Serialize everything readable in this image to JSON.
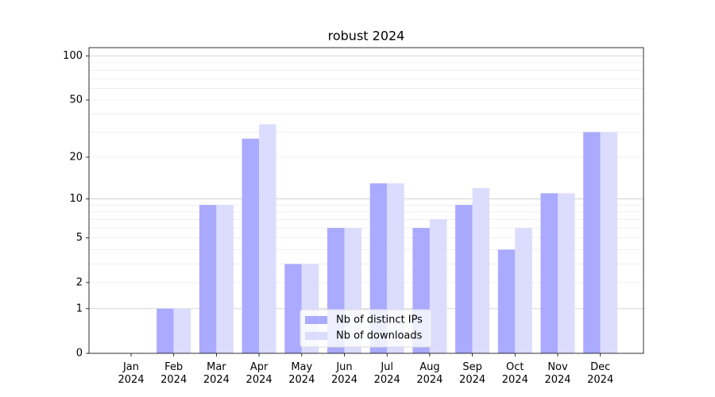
{
  "chart_data": {
    "type": "bar",
    "title": "robust 2024",
    "categories": [
      "Jan 2024",
      "Feb 2024",
      "Mar 2024",
      "Apr 2024",
      "May 2024",
      "Jun 2024",
      "Jul 2024",
      "Aug 2024",
      "Sep 2024",
      "Oct 2024",
      "Nov 2024",
      "Dec 2024"
    ],
    "series": [
      {
        "name": "Nb of distinct IPs",
        "color": "#aaaaff",
        "values": [
          0,
          1,
          9,
          27,
          3,
          6,
          13,
          6,
          9,
          4,
          11,
          30
        ]
      },
      {
        "name": "Nb of downloads",
        "color": "#dcdcff",
        "values": [
          0,
          1,
          9,
          34,
          3,
          6,
          13,
          7,
          12,
          6,
          11,
          30
        ]
      }
    ],
    "yscale": "log1p",
    "ylim": [
      0,
      114
    ],
    "yticks": [
      0,
      1,
      2,
      5,
      10,
      20,
      50,
      100
    ],
    "minor_yticks": [
      3,
      4,
      6,
      7,
      8,
      9,
      30,
      40,
      60,
      70,
      80,
      90
    ],
    "major_grid": [
      1,
      10,
      100
    ],
    "grid": true,
    "legend": "lower center"
  }
}
